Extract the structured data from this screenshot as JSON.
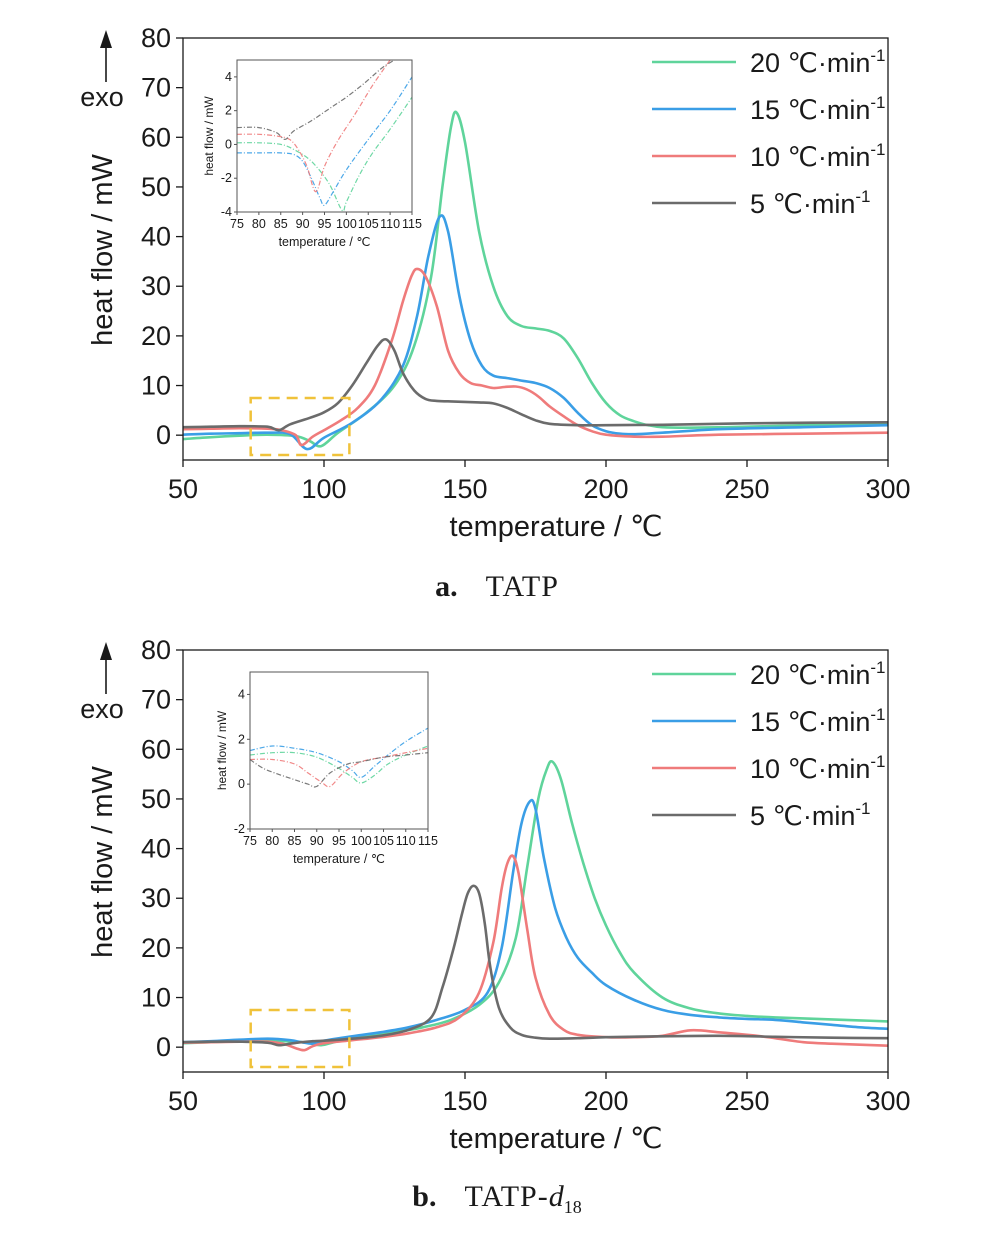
{
  "chart_data": [
    {
      "type": "line",
      "id": "a",
      "caption_letter": "a.",
      "caption_name": "TATP",
      "caption_sub": "",
      "xlabel": "temperature / ℃",
      "ylabel": "heat flow / mW",
      "exo_label": "exo",
      "xlim": [
        50,
        300
      ],
      "ylim": [
        -5,
        80
      ],
      "xticks": [
        "50",
        "100",
        "150",
        "200",
        "250",
        "300"
      ],
      "yticks": [
        "0",
        "10",
        "20",
        "30",
        "40",
        "50",
        "60",
        "70",
        "80"
      ],
      "legend_position": "top-right",
      "highlight_box": {
        "x": [
          74,
          109
        ],
        "y": [
          -4,
          7.5
        ]
      },
      "series": [
        {
          "name": "20 ℃·min",
          "sup": "-1",
          "color": "#5fd49b",
          "x": [
            50,
            60,
            70,
            80,
            90,
            95,
            99,
            105,
            115,
            125,
            132,
            138,
            142,
            145,
            147,
            150,
            155,
            160,
            165,
            170,
            175,
            180,
            185,
            190,
            195,
            200,
            205,
            210,
            215,
            220,
            230,
            250,
            270,
            300
          ],
          "y": [
            -0.8,
            -0.4,
            -0.1,
            0.1,
            -0.2,
            -1.2,
            -2.2,
            0.5,
            4.5,
            10,
            18,
            32,
            50,
            62,
            65,
            59,
            41,
            30,
            24,
            22,
            21.5,
            21,
            19.5,
            15.5,
            10.5,
            6.5,
            4,
            2.8,
            2,
            1.6,
            1.5,
            1.7,
            2,
            2.2
          ]
        },
        {
          "name": "15 ℃·min",
          "sup": "-1",
          "color": "#3a9ee6",
          "x": [
            50,
            60,
            70,
            80,
            88,
            94,
            100,
            110,
            120,
            128,
            133,
            137,
            141,
            144,
            148,
            152,
            156,
            160,
            165,
            170,
            175,
            180,
            185,
            190,
            195,
            200,
            205,
            210,
            220,
            240,
            270,
            300
          ],
          "y": [
            0.1,
            0.3,
            0.4,
            0.5,
            0.2,
            -2.8,
            -0.5,
            2.5,
            7,
            14,
            24,
            36,
            44,
            41,
            28,
            19,
            14,
            12,
            11.5,
            11,
            10.5,
            9.5,
            7.5,
            4.5,
            2,
            0.8,
            0.3,
            0.2,
            0.5,
            1.2,
            1.6,
            2
          ]
        },
        {
          "name": "10 ℃·min",
          "sup": "-1",
          "color": "#ef7b7b",
          "x": [
            50,
            60,
            70,
            80,
            85,
            90,
            92,
            96,
            100,
            106,
            112,
            118,
            124,
            128,
            131,
            133,
            136,
            140,
            144,
            148,
            152,
            156,
            160,
            164,
            168,
            172,
            176,
            180,
            185,
            190,
            195,
            200,
            210,
            220,
            240,
            270,
            300
          ],
          "y": [
            1.2,
            1.3,
            1.4,
            1.3,
            1,
            0,
            -2,
            -0.3,
            1,
            3,
            5.5,
            10,
            19,
            27,
            32,
            33.5,
            32,
            26,
            17,
            12.5,
            10.5,
            10,
            9.5,
            9.7,
            9.8,
            9.2,
            7.8,
            5.8,
            3.8,
            2,
            0.8,
            0.1,
            -0.3,
            -0.3,
            0.1,
            0.3,
            0.5
          ]
        },
        {
          "name": "5 ℃·min",
          "sup": "-1",
          "color": "#6b6b6b",
          "x": [
            50,
            60,
            70,
            80,
            84,
            88,
            95,
            100,
            105,
            110,
            115,
            119,
            122,
            125,
            128,
            132,
            136,
            140,
            145,
            150,
            155,
            160,
            165,
            170,
            175,
            180,
            190,
            200,
            220,
            250,
            300
          ],
          "y": [
            1.6,
            1.7,
            1.8,
            1.7,
            1,
            2.2,
            3.5,
            4.6,
            6.5,
            10,
            14.5,
            18,
            19.3,
            17,
            12.5,
            9,
            7.3,
            6.9,
            6.8,
            6.7,
            6.6,
            6.4,
            5.5,
            4.2,
            3,
            2.3,
            2,
            2,
            2.1,
            2.4,
            2.6
          ]
        }
      ],
      "inset": {
        "xlabel": "temperature / ℃",
        "ylabel": "heat flow / mW",
        "xlim": [
          75,
          115
        ],
        "ylim": [
          -4,
          5
        ],
        "xticks": [
          "75",
          "80",
          "85",
          "90",
          "95",
          "100",
          "105",
          "110",
          "115"
        ],
        "yticks": [
          "-4",
          "-2",
          "0",
          "2",
          "4"
        ],
        "series": [
          {
            "color": "#5fd49b",
            "x": [
              75,
              80,
              85,
              88,
              92,
              96,
              99,
              100,
              103,
              106,
              110,
              115
            ],
            "y": [
              0.1,
              0.1,
              0,
              -0.3,
              -1,
              -2.3,
              -3.9,
              -3.4,
              -1.8,
              -0.5,
              0.9,
              2.8
            ]
          },
          {
            "color": "#3a9ee6",
            "x": [
              75,
              80,
              85,
              88,
              90,
              92,
              94,
              95,
              97,
              100,
              105,
              110,
              115
            ],
            "y": [
              -0.5,
              -0.5,
              -0.5,
              -0.6,
              -1,
              -2,
              -3.2,
              -3.6,
              -2.8,
              -1.5,
              0.3,
              2,
              4
            ]
          },
          {
            "color": "#ef7b7b",
            "x": [
              75,
              80,
              84,
              87,
              89,
              91,
              93,
              95,
              98,
              102,
              106,
              110
            ],
            "y": [
              0.6,
              0.6,
              0.5,
              0.3,
              -0.3,
              -1.3,
              -2.8,
              -1.3,
              0.2,
              1.8,
              3.5,
              5
            ]
          },
          {
            "color": "#6b6b6b",
            "x": [
              75,
              80,
              84,
              86,
              88,
              92,
              96,
              100,
              104,
              108,
              111
            ],
            "y": [
              1,
              1,
              0.7,
              0.3,
              0.8,
              1.4,
              2.1,
              2.8,
              3.6,
              4.5,
              5
            ]
          }
        ]
      }
    },
    {
      "type": "line",
      "id": "b",
      "caption_letter": "b.",
      "caption_name": "TATP-",
      "caption_italic": "d",
      "caption_sub": "18",
      "xlabel": "temperature / ℃",
      "ylabel": "heat flow / mW",
      "exo_label": "exo",
      "xlim": [
        50,
        300
      ],
      "ylim": [
        -5,
        80
      ],
      "xticks": [
        "50",
        "100",
        "150",
        "200",
        "250",
        "300"
      ],
      "yticks": [
        "0",
        "10",
        "20",
        "30",
        "40",
        "50",
        "60",
        "70",
        "80"
      ],
      "legend_position": "top-right",
      "highlight_box": {
        "x": [
          74,
          109
        ],
        "y": [
          -4,
          7.5
        ]
      },
      "series": [
        {
          "name": "20 ℃·min",
          "sup": "-1",
          "color": "#5fd49b",
          "x": [
            50,
            60,
            70,
            80,
            90,
            95,
            99,
            105,
            115,
            125,
            135,
            145,
            155,
            162,
            168,
            172,
            176,
            179,
            181,
            184,
            188,
            192,
            196,
            200,
            205,
            210,
            220,
            230,
            240,
            250,
            260,
            270,
            280,
            290,
            300
          ],
          "y": [
            0.8,
            1,
            1.2,
            1.3,
            1.1,
            0.8,
            0.4,
            1.2,
            2.2,
            3,
            4,
            5.5,
            8.5,
            13,
            22,
            36,
            50,
            56,
            57.5,
            54,
            45,
            37,
            30,
            24.5,
            19,
            15,
            10,
            7.8,
            6.8,
            6.3,
            6,
            5.8,
            5.6,
            5.4,
            5.2
          ]
        },
        {
          "name": "15 ℃·min",
          "sup": "-1",
          "color": "#3a9ee6",
          "x": [
            50,
            60,
            70,
            80,
            88,
            92,
            96,
            100,
            110,
            120,
            130,
            140,
            150,
            158,
            163,
            167,
            170,
            173,
            175,
            178,
            182,
            186,
            190,
            195,
            200,
            210,
            220,
            230,
            240,
            250,
            260,
            270,
            280,
            290,
            300
          ],
          "y": [
            1,
            1.2,
            1.5,
            1.7,
            1.4,
            1,
            0.7,
            1.3,
            2.2,
            3,
            4,
            5.5,
            7.5,
            11,
            20,
            35,
            45,
            49.5,
            48,
            38,
            28,
            22,
            18,
            15,
            12.5,
            9.5,
            7.5,
            6.5,
            6,
            5.7,
            5.5,
            5,
            4.5,
            4,
            3.7
          ]
        },
        {
          "name": "10 ℃·min",
          "sup": "-1",
          "color": "#ef7b7b",
          "x": [
            50,
            60,
            70,
            80,
            86,
            90,
            93,
            96,
            100,
            110,
            120,
            130,
            140,
            148,
            155,
            160,
            163,
            165,
            167,
            169,
            172,
            175,
            180,
            185,
            190,
            200,
            210,
            220,
            230,
            240,
            250,
            255,
            260,
            270,
            280,
            290,
            300
          ],
          "y": [
            0.9,
            1,
            1.1,
            1.1,
            0.6,
            -0.2,
            -0.6,
            0.2,
            0.8,
            1.4,
            2,
            2.8,
            4,
            6,
            11,
            21,
            32,
            37,
            38.5,
            35,
            24,
            14,
            6.5,
            3.5,
            2.5,
            2,
            2,
            2.3,
            3.4,
            3,
            2.5,
            2.2,
            1.8,
            1,
            0.7,
            0.5,
            0.3
          ]
        },
        {
          "name": "5 ℃·min",
          "sup": "-1",
          "color": "#6b6b6b",
          "x": [
            50,
            60,
            70,
            80,
            84,
            88,
            92,
            96,
            100,
            110,
            120,
            130,
            138,
            142,
            146,
            149,
            151,
            153,
            155,
            157,
            159,
            162,
            166,
            170,
            175,
            180,
            190,
            200,
            220,
            240,
            260,
            280,
            300
          ],
          "y": [
            1,
            1.1,
            1.1,
            0.9,
            0.4,
            0.7,
            1,
            1.2,
            1.3,
            1.7,
            2.3,
            3.5,
            6,
            12,
            20,
            27,
            31,
            32.5,
            31,
            25,
            16,
            8,
            4,
            2.5,
            1.9,
            1.7,
            1.8,
            2,
            2.2,
            2.3,
            2.1,
            1.9,
            1.8
          ]
        }
      ],
      "inset": {
        "xlabel": "temperature / ℃",
        "ylabel": "heat flow / mW",
        "xlim": [
          75,
          115
        ],
        "ylim": [
          -2,
          5
        ],
        "xticks": [
          "75",
          "80",
          "85",
          "90",
          "95",
          "100",
          "105",
          "110",
          "115"
        ],
        "yticks": [
          "-2",
          "0",
          "2",
          "4"
        ],
        "series": [
          {
            "color": "#5fd49b",
            "x": [
              75,
              80,
              85,
              90,
              95,
              98,
              100,
              103,
              106,
              110,
              115
            ],
            "y": [
              1.3,
              1.4,
              1.4,
              1.2,
              0.7,
              0.3,
              0.05,
              0.4,
              0.9,
              1.3,
              1.7
            ]
          },
          {
            "color": "#3a9ee6",
            "x": [
              75,
              80,
              85,
              90,
              95,
              98,
              100,
              103,
              106,
              110,
              115
            ],
            "y": [
              1.5,
              1.7,
              1.6,
              1.4,
              1,
              0.6,
              0.3,
              0.8,
              1.3,
              1.9,
              2.5
            ]
          },
          {
            "color": "#ef7b7b",
            "x": [
              75,
              80,
              85,
              88,
              91,
              93,
              96,
              100,
              105,
              110,
              115
            ],
            "y": [
              1.1,
              1.1,
              0.9,
              0.5,
              0.1,
              -0.1,
              0.5,
              1,
              1.2,
              1.4,
              1.6
            ]
          },
          {
            "color": "#6b6b6b",
            "x": [
              75,
              78,
              82,
              85,
              88,
              90,
              93,
              97,
              100,
              105,
              110,
              115
            ],
            "y": [
              1.1,
              0.7,
              0.4,
              0.2,
              0,
              -0.1,
              0.5,
              0.9,
              1,
              1.2,
              1.3,
              1.4
            ]
          }
        ]
      }
    }
  ]
}
